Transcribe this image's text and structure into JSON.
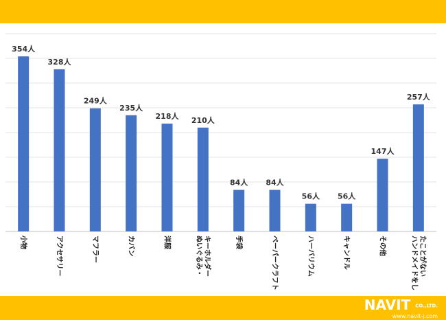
{
  "chart_data": {
    "type": "bar",
    "categories": [
      "小物",
      "アクセサリー",
      "マフラー",
      "カバン",
      "洋服",
      "ぬいぐるみ・キーホルダー",
      "手袋",
      "ペーパークラフト",
      "ハーバリウム",
      "キャンドル",
      "その他",
      "ハンドメイドをしたことがない"
    ],
    "category_lines": [
      [
        "小物"
      ],
      [
        "アクセサリー"
      ],
      [
        "マフラー"
      ],
      [
        "カバン"
      ],
      [
        "洋服"
      ],
      [
        "ぬいぐるみ・",
        "キーホルダー"
      ],
      [
        "手袋"
      ],
      [
        "ペーパークラフト"
      ],
      [
        "ハーバリウム"
      ],
      [
        "キャンドル"
      ],
      [
        "その他"
      ],
      [
        "ハンドメイドをし",
        "たことがない"
      ]
    ],
    "values": [
      354,
      328,
      249,
      235,
      218,
      210,
      84,
      84,
      56,
      56,
      147,
      257
    ],
    "value_labels": [
      "354人",
      "328人",
      "249人",
      "235人",
      "218人",
      "210人",
      "84人",
      "84人",
      "56人",
      "56人",
      "147人",
      "257人"
    ],
    "ylim": [
      0,
      400
    ],
    "grid": true,
    "bar_color": "#4472c4"
  },
  "footer": {
    "brand": "NAVIT",
    "company_suffix": "CO.,LTD.",
    "url": "www.navit-j.com"
  },
  "colors": {
    "accent": "#ffc000"
  }
}
